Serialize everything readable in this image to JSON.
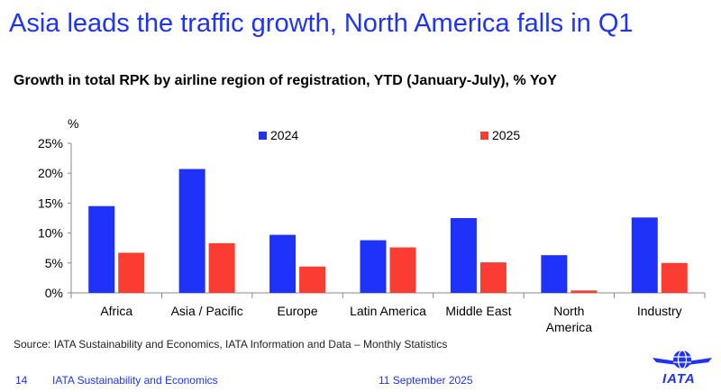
{
  "headline": "Asia leads the traffic growth, North America falls in Q1",
  "source": "Source: IATA Sustainability and Economics, IATA Information and Data – Monthly Statistics",
  "footer": {
    "page_number": "14",
    "org": "IATA Sustainability and Economics",
    "date": "11 September 2025",
    "logo_text": "IATA"
  },
  "colors": {
    "brand": "#1e32fa",
    "series_2024": "#1e32fa",
    "series_2025": "#fa3c32"
  },
  "chart_data": {
    "type": "bar",
    "title": "Growth in total RPK by airline region of registration, YTD (January-July), % YoY",
    "ylabel": "%",
    "categories": [
      "Africa",
      "Asia / Pacific",
      "Europe",
      "Latin America",
      "Middle East",
      [
        "North",
        "America"
      ],
      "Industry"
    ],
    "series": [
      {
        "name": "2024",
        "color": "#1e32fa",
        "values": [
          14.5,
          20.7,
          9.7,
          8.8,
          12.5,
          6.3,
          12.6
        ]
      },
      {
        "name": "2025",
        "color": "#fa3c32",
        "values": [
          6.7,
          8.3,
          4.4,
          7.6,
          5.1,
          0.4,
          5.0
        ]
      }
    ],
    "ylim": [
      0,
      25
    ],
    "yticks": [
      0,
      5,
      10,
      15,
      20,
      25
    ],
    "ytick_labels": [
      "0%",
      "5%",
      "10%",
      "15%",
      "20%",
      "25%"
    ],
    "grid": false,
    "legend": "top"
  }
}
